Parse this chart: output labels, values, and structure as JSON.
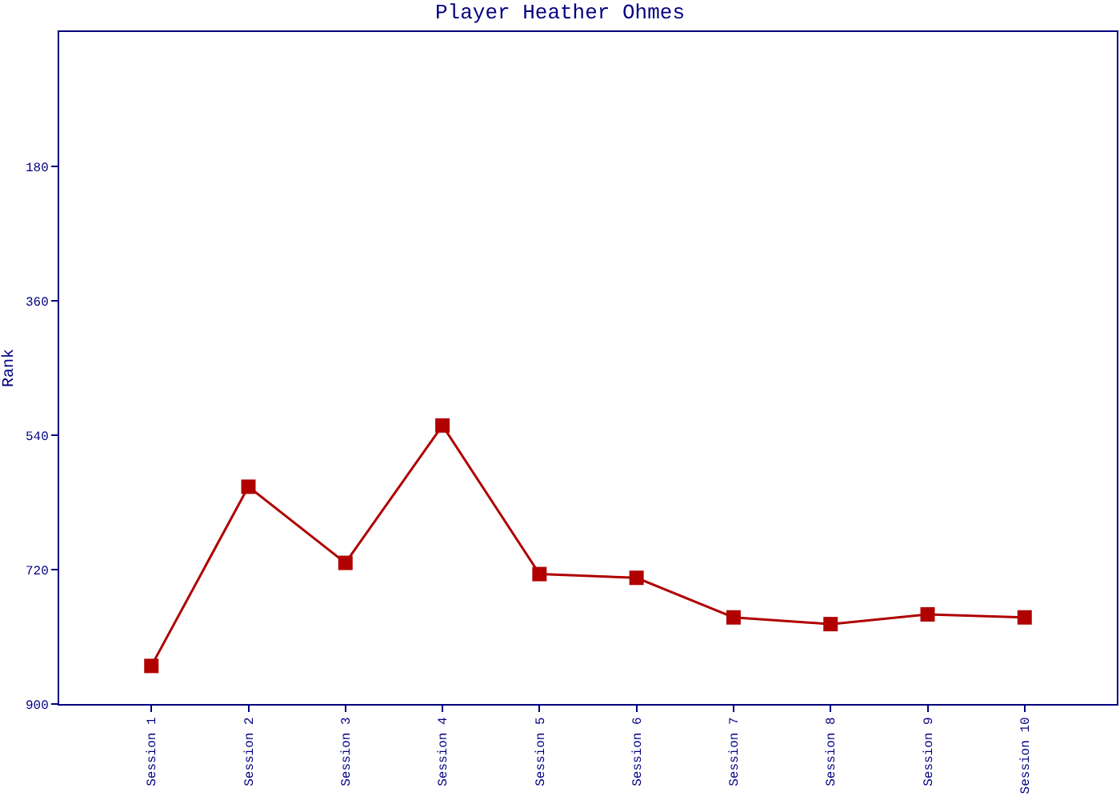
{
  "chart_data": {
    "type": "line",
    "title": "Player Heather Ohmes",
    "ylabel": "Rank",
    "categories": [
      "Session 1",
      "Session 2",
      "Session 3",
      "Session 4",
      "Session 5",
      "Session 6",
      "Session 7",
      "Session 8",
      "Session 9",
      "Session 10"
    ],
    "series": [
      {
        "color": "#b00000",
        "values": [
          849,
          609,
          711,
          527,
          726,
          731,
          784,
          793,
          780,
          784
        ]
      }
    ],
    "ylim": [
      900,
      0
    ],
    "yticks": [
      180,
      360,
      540,
      720,
      900
    ],
    "grid": false,
    "marker": "square",
    "line_style": "solid"
  }
}
